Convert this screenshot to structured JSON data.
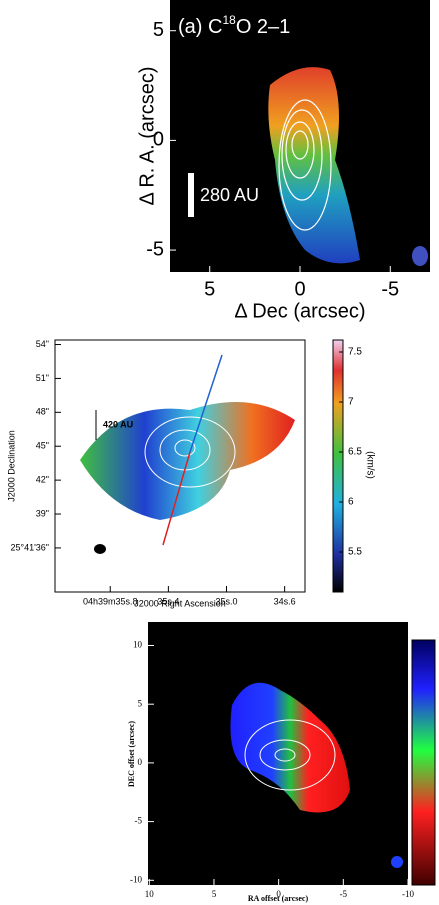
{
  "chart_data": [
    {
      "type": "image-map",
      "title": "(a) C",
      "title_sup": "18",
      "title_rest": "O 2–1",
      "scale_label": "280 AU",
      "xlabel": "Δ Dec (arcsec)",
      "ylabel": "Δ R. A. (arcsec)",
      "xlim": [
        7.2,
        -7.2
      ],
      "ylim": [
        -6,
        6.4
      ],
      "xticks": [
        5,
        0,
        -5
      ],
      "yticks": [
        5,
        0,
        -5
      ]
    },
    {
      "type": "image-map",
      "scale_label": "420 AU",
      "xlabel": "J2000 Right Ascension",
      "ylabel": "J2000 Declination",
      "xlim": [
        36.18,
        34.46
      ],
      "ylim": [
        32.1,
        54.4
      ],
      "xticks": [
        {
          "value": 35.8,
          "label": "04h39m35s.8"
        },
        {
          "value": 35.4,
          "label": "35s.4"
        },
        {
          "value": 35.0,
          "label": "35s.0"
        },
        {
          "value": 34.6,
          "label": "34s.6"
        }
      ],
      "yticks": [
        {
          "value": 54,
          "label": "54\""
        },
        {
          "value": 51,
          "label": "51\""
        },
        {
          "value": 48,
          "label": "48\""
        },
        {
          "value": 45,
          "label": "45\""
        },
        {
          "value": 42,
          "label": "42\""
        },
        {
          "value": 39,
          "label": "39\""
        },
        {
          "value": 36,
          "label": "25°41'36\""
        }
      ],
      "colorbar_label": "(km/s)",
      "colorbar_lim": [
        5.1,
        7.62
      ],
      "colorbar_ticks": [
        5.5,
        6,
        6.5,
        7,
        7.5
      ]
    },
    {
      "type": "image-map",
      "xlabel": "RA offset (arcsec)",
      "ylabel": "DEC offset (arcsec)",
      "xlim": [
        10.1,
        -10
      ],
      "ylim": [
        -10.4,
        12
      ],
      "xticks": [
        10,
        5,
        0,
        -5,
        -10
      ],
      "yticks": [
        10,
        5,
        0,
        -5,
        -10
      ]
    }
  ]
}
